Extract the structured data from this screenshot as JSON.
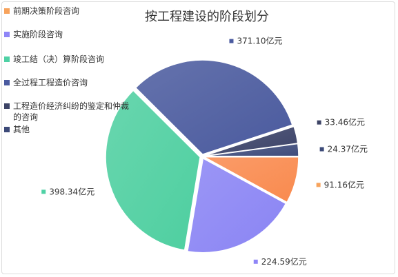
{
  "chart_data": {
    "type": "pie",
    "title": "按工程建设的阶段划分",
    "unit": "亿元",
    "legend_position": "left",
    "slices": [
      {
        "name": "前期决策阶段咨询",
        "value": 91.16,
        "label": "91.16亿元",
        "color": "#f98a4e",
        "legend_color": "#f7a35c"
      },
      {
        "name": "实施阶段咨询",
        "value": 224.59,
        "label": "224.59亿元",
        "color": "#8a84f4",
        "legend_color": "#8f86f7"
      },
      {
        "name": "竣工结（决）算阶段咨询",
        "value": 398.34,
        "label": "398.34亿元",
        "color": "#4ecfa0",
        "legend_color": "#4fd1a5"
      },
      {
        "name": "全过程工程造价咨询",
        "value": 371.1,
        "label": "371.10亿元",
        "color": "#4a5a9e",
        "legend_color": "#4b5ba0"
      },
      {
        "name": "工程造价经济纠纷的鉴定和仲裁的咨询",
        "value": 33.46,
        "label": "33.46亿元",
        "color": "#3b4268",
        "legend_color": "#3d4466"
      },
      {
        "name": "其他",
        "value": 24.37,
        "label": "24.37亿元",
        "color": "#3f4c7c",
        "legend_color": "#3c4a78"
      }
    ]
  }
}
